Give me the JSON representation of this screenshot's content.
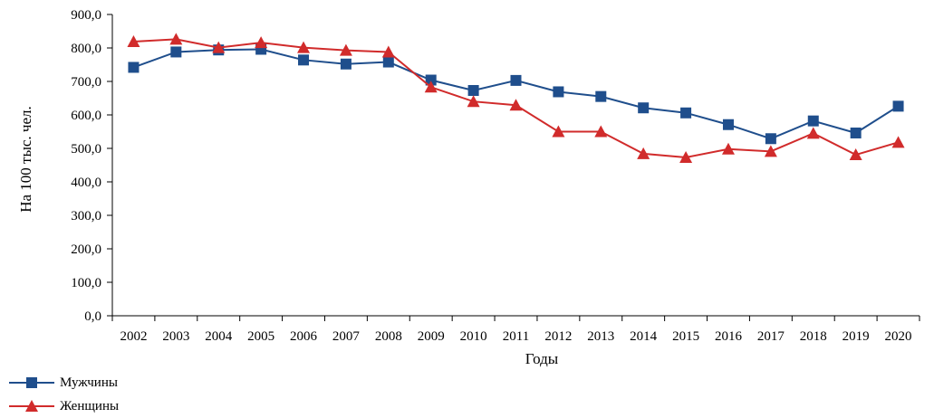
{
  "chart_data": {
    "type": "line",
    "title": "",
    "xlabel": "Годы",
    "ylabel": "На 100 тыс. чел.",
    "categories": [
      "2002",
      "2003",
      "2004",
      "2005",
      "2006",
      "2007",
      "2008",
      "2009",
      "2010",
      "2011",
      "2012",
      "2013",
      "2014",
      "2015",
      "2016",
      "2017",
      "2018",
      "2019",
      "2020"
    ],
    "yticks": [
      "0,0",
      "100,0",
      "200,0",
      "300,0",
      "400,0",
      "500,0",
      "600,0",
      "700,0",
      "800,0",
      "900,0"
    ],
    "ylim": [
      0,
      900
    ],
    "grid": false,
    "legend_position": "bottom-left",
    "series": [
      {
        "name": "Мужчины",
        "color": "#1f4e8c",
        "marker": "square",
        "values": [
          742,
          788,
          794,
          796,
          764,
          752,
          758,
          704,
          673,
          703,
          669,
          655,
          621,
          606,
          571,
          529,
          582,
          546,
          626
        ]
      },
      {
        "name": "Женщины",
        "color": "#d12b2b",
        "marker": "triangle",
        "values": [
          819,
          826,
          801,
          816,
          801,
          793,
          788,
          683,
          640,
          629,
          550,
          550,
          484,
          473,
          498,
          491,
          545,
          481,
          518
        ]
      }
    ]
  }
}
